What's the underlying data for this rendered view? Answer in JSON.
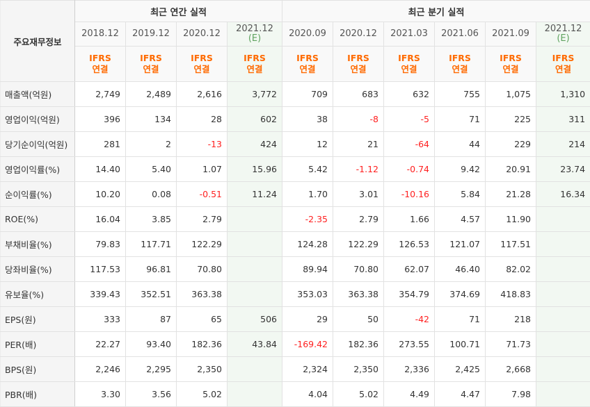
{
  "header": {
    "corner": "주요재무정보",
    "annual_group": "최근 연간 실적",
    "quarter_group": "최근 분기 실적",
    "annual_periods": [
      {
        "label": "2018.12",
        "est": ""
      },
      {
        "label": "2019.12",
        "est": ""
      },
      {
        "label": "2020.12",
        "est": ""
      },
      {
        "label": "2021.12",
        "est": "(E)"
      }
    ],
    "quarter_periods": [
      {
        "label": "2020.09",
        "est": ""
      },
      {
        "label": "2020.12",
        "est": ""
      },
      {
        "label": "2021.03",
        "est": ""
      },
      {
        "label": "2021.06",
        "est": ""
      },
      {
        "label": "2021.09",
        "est": ""
      },
      {
        "label": "2021.12",
        "est": "(E)"
      }
    ],
    "ifrs_top": "IFRS",
    "ifrs_bottom": "연결"
  },
  "rows": [
    {
      "label": "매출액(억원)",
      "values": [
        "2,749",
        "2,489",
        "2,616",
        "3,772",
        "709",
        "683",
        "632",
        "755",
        "1,075",
        "1,310"
      ]
    },
    {
      "label": "영업이익(억원)",
      "values": [
        "396",
        "134",
        "28",
        "602",
        "38",
        "-8",
        "-5",
        "71",
        "225",
        "311"
      ]
    },
    {
      "label": "당기순이익(억원)",
      "values": [
        "281",
        "2",
        "-13",
        "424",
        "12",
        "21",
        "-64",
        "44",
        "229",
        "214"
      ]
    },
    {
      "label": "영업이익률(%)",
      "values": [
        "14.40",
        "5.40",
        "1.07",
        "15.96",
        "5.42",
        "-1.12",
        "-0.74",
        "9.42",
        "20.91",
        "23.74"
      ]
    },
    {
      "label": "순이익률(%)",
      "values": [
        "10.20",
        "0.08",
        "-0.51",
        "11.24",
        "1.70",
        "3.01",
        "-10.16",
        "5.84",
        "21.28",
        "16.34"
      ]
    },
    {
      "label": "ROE(%)",
      "values": [
        "16.04",
        "3.85",
        "2.79",
        "",
        "-2.35",
        "2.79",
        "1.66",
        "4.57",
        "11.90",
        ""
      ]
    },
    {
      "label": "부채비율(%)",
      "values": [
        "79.83",
        "117.71",
        "122.29",
        "",
        "124.28",
        "122.29",
        "126.53",
        "121.07",
        "117.51",
        ""
      ]
    },
    {
      "label": "당좌비율(%)",
      "values": [
        "117.53",
        "96.81",
        "70.80",
        "",
        "89.94",
        "70.80",
        "62.07",
        "46.40",
        "82.02",
        ""
      ]
    },
    {
      "label": "유보율(%)",
      "values": [
        "339.43",
        "352.51",
        "363.38",
        "",
        "353.03",
        "363.38",
        "354.79",
        "374.69",
        "418.83",
        ""
      ]
    },
    {
      "label": "EPS(원)",
      "values": [
        "333",
        "87",
        "65",
        "506",
        "29",
        "50",
        "-42",
        "71",
        "218",
        ""
      ]
    },
    {
      "label": "PER(배)",
      "values": [
        "22.27",
        "93.40",
        "182.36",
        "43.84",
        "-169.42",
        "182.36",
        "273.55",
        "100.71",
        "71.73",
        ""
      ]
    },
    {
      "label": "BPS(원)",
      "values": [
        "2,246",
        "2,295",
        "2,350",
        "",
        "2,324",
        "2,350",
        "2,336",
        "2,425",
        "2,668",
        ""
      ]
    },
    {
      "label": "PBR(배)",
      "values": [
        "3.30",
        "3.56",
        "5.02",
        "",
        "4.04",
        "5.02",
        "4.49",
        "4.47",
        "7.98",
        ""
      ]
    }
  ]
}
